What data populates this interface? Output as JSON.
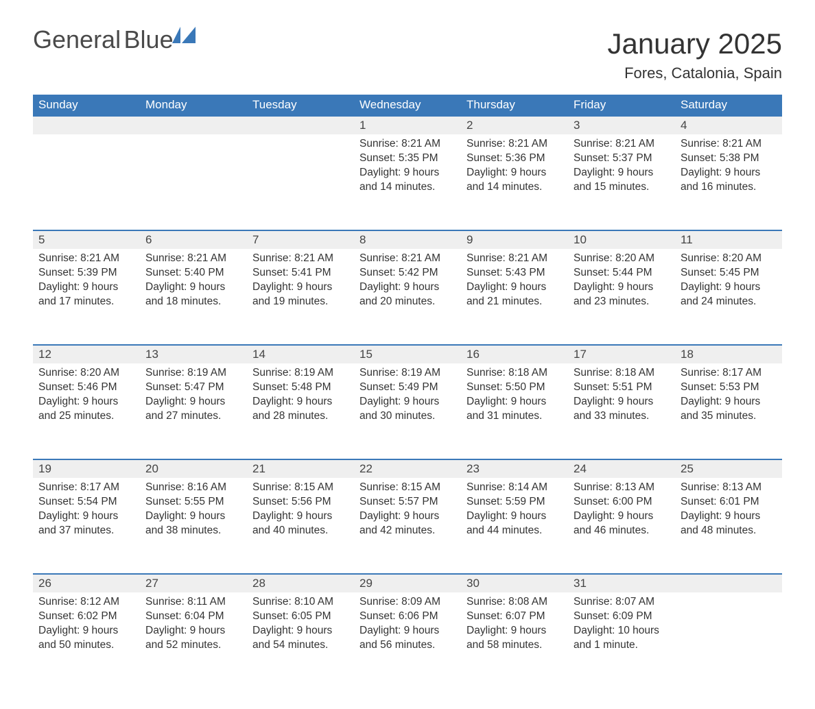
{
  "logo": {
    "line1": "General",
    "line2": "Blue"
  },
  "title": "January 2025",
  "location": "Fores, Catalonia, Spain",
  "colors": {
    "accent": "#3a78b8",
    "header_bg": "#3a78b8",
    "row_bg": "#efefef",
    "text": "#333333",
    "bg": "#ffffff"
  },
  "weekdays": [
    "Sunday",
    "Monday",
    "Tuesday",
    "Wednesday",
    "Thursday",
    "Friday",
    "Saturday"
  ],
  "labels": {
    "sunrise": "Sunrise",
    "sunset": "Sunset",
    "daylight": "Daylight"
  },
  "weeks": [
    [
      null,
      null,
      null,
      {
        "day": "1",
        "sunrise": "8:21 AM",
        "sunset": "5:35 PM",
        "daylight": "9 hours and 14 minutes."
      },
      {
        "day": "2",
        "sunrise": "8:21 AM",
        "sunset": "5:36 PM",
        "daylight": "9 hours and 14 minutes."
      },
      {
        "day": "3",
        "sunrise": "8:21 AM",
        "sunset": "5:37 PM",
        "daylight": "9 hours and 15 minutes."
      },
      {
        "day": "4",
        "sunrise": "8:21 AM",
        "sunset": "5:38 PM",
        "daylight": "9 hours and 16 minutes."
      }
    ],
    [
      {
        "day": "5",
        "sunrise": "8:21 AM",
        "sunset": "5:39 PM",
        "daylight": "9 hours and 17 minutes."
      },
      {
        "day": "6",
        "sunrise": "8:21 AM",
        "sunset": "5:40 PM",
        "daylight": "9 hours and 18 minutes."
      },
      {
        "day": "7",
        "sunrise": "8:21 AM",
        "sunset": "5:41 PM",
        "daylight": "9 hours and 19 minutes."
      },
      {
        "day": "8",
        "sunrise": "8:21 AM",
        "sunset": "5:42 PM",
        "daylight": "9 hours and 20 minutes."
      },
      {
        "day": "9",
        "sunrise": "8:21 AM",
        "sunset": "5:43 PM",
        "daylight": "9 hours and 21 minutes."
      },
      {
        "day": "10",
        "sunrise": "8:20 AM",
        "sunset": "5:44 PM",
        "daylight": "9 hours and 23 minutes."
      },
      {
        "day": "11",
        "sunrise": "8:20 AM",
        "sunset": "5:45 PM",
        "daylight": "9 hours and 24 minutes."
      }
    ],
    [
      {
        "day": "12",
        "sunrise": "8:20 AM",
        "sunset": "5:46 PM",
        "daylight": "9 hours and 25 minutes."
      },
      {
        "day": "13",
        "sunrise": "8:19 AM",
        "sunset": "5:47 PM",
        "daylight": "9 hours and 27 minutes."
      },
      {
        "day": "14",
        "sunrise": "8:19 AM",
        "sunset": "5:48 PM",
        "daylight": "9 hours and 28 minutes."
      },
      {
        "day": "15",
        "sunrise": "8:19 AM",
        "sunset": "5:49 PM",
        "daylight": "9 hours and 30 minutes."
      },
      {
        "day": "16",
        "sunrise": "8:18 AM",
        "sunset": "5:50 PM",
        "daylight": "9 hours and 31 minutes."
      },
      {
        "day": "17",
        "sunrise": "8:18 AM",
        "sunset": "5:51 PM",
        "daylight": "9 hours and 33 minutes."
      },
      {
        "day": "18",
        "sunrise": "8:17 AM",
        "sunset": "5:53 PM",
        "daylight": "9 hours and 35 minutes."
      }
    ],
    [
      {
        "day": "19",
        "sunrise": "8:17 AM",
        "sunset": "5:54 PM",
        "daylight": "9 hours and 37 minutes."
      },
      {
        "day": "20",
        "sunrise": "8:16 AM",
        "sunset": "5:55 PM",
        "daylight": "9 hours and 38 minutes."
      },
      {
        "day": "21",
        "sunrise": "8:15 AM",
        "sunset": "5:56 PM",
        "daylight": "9 hours and 40 minutes."
      },
      {
        "day": "22",
        "sunrise": "8:15 AM",
        "sunset": "5:57 PM",
        "daylight": "9 hours and 42 minutes."
      },
      {
        "day": "23",
        "sunrise": "8:14 AM",
        "sunset": "5:59 PM",
        "daylight": "9 hours and 44 minutes."
      },
      {
        "day": "24",
        "sunrise": "8:13 AM",
        "sunset": "6:00 PM",
        "daylight": "9 hours and 46 minutes."
      },
      {
        "day": "25",
        "sunrise": "8:13 AM",
        "sunset": "6:01 PM",
        "daylight": "9 hours and 48 minutes."
      }
    ],
    [
      {
        "day": "26",
        "sunrise": "8:12 AM",
        "sunset": "6:02 PM",
        "daylight": "9 hours and 50 minutes."
      },
      {
        "day": "27",
        "sunrise": "8:11 AM",
        "sunset": "6:04 PM",
        "daylight": "9 hours and 52 minutes."
      },
      {
        "day": "28",
        "sunrise": "8:10 AM",
        "sunset": "6:05 PM",
        "daylight": "9 hours and 54 minutes."
      },
      {
        "day": "29",
        "sunrise": "8:09 AM",
        "sunset": "6:06 PM",
        "daylight": "9 hours and 56 minutes."
      },
      {
        "day": "30",
        "sunrise": "8:08 AM",
        "sunset": "6:07 PM",
        "daylight": "9 hours and 58 minutes."
      },
      {
        "day": "31",
        "sunrise": "8:07 AM",
        "sunset": "6:09 PM",
        "daylight": "10 hours and 1 minute."
      },
      null
    ]
  ]
}
